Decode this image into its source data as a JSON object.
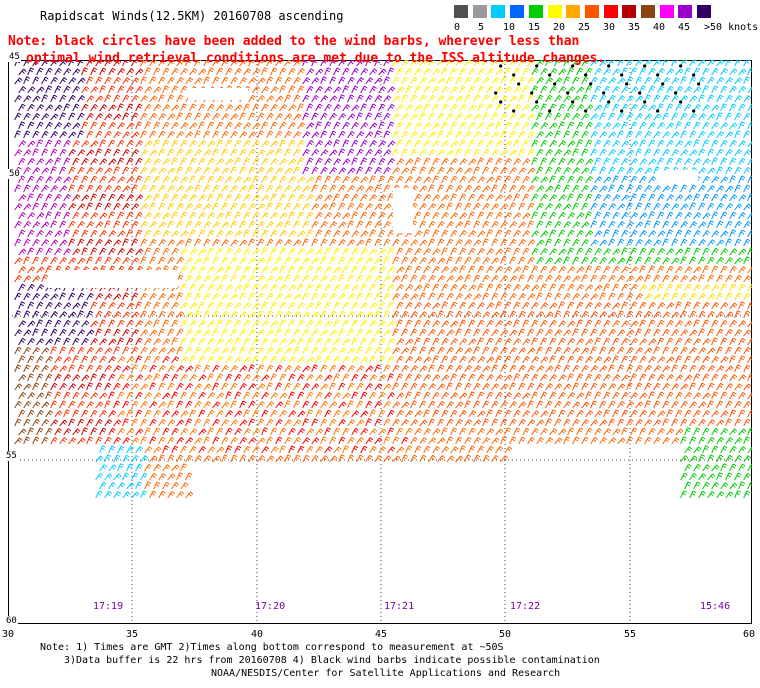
{
  "title": "Rapidscat Winds(12.5KM) 20160708 ascending",
  "note": {
    "line1": "Note: black circles have been added to the wind barbs, wherever less than",
    "line2": "optimal wind retrieval conditions are met due to the ISS altitude changes."
  },
  "legend": {
    "labels": [
      "0",
      "5",
      "10",
      "15",
      "20",
      "25",
      "30",
      "35",
      "40",
      "45",
      ">50 knots"
    ],
    "colors": [
      "#505050",
      "#9a9a9a",
      "#00ccff",
      "#0066ff",
      "#00cc00",
      "#ffff00",
      "#ffaa00",
      "#ff5500",
      "#ff0000",
      "#b40000",
      "#8b4513",
      "#ff00ff",
      "#9900cc",
      "#330066"
    ]
  },
  "lat_labels": [
    "45",
    "50",
    "55",
    "60"
  ],
  "lon_labels": [
    "30",
    "35",
    "40",
    "45",
    "50",
    "55",
    "60"
  ],
  "time_labels": [
    "17:19",
    "17:20",
    "17:21",
    "17:22",
    "15:46"
  ],
  "footer": {
    "line1": "Note: 1) Times are GMT 2)Times along bottom correspond to measurement at ~50S",
    "line2": "3)Data buffer is 22 hrs from 20160708 4) Black wind barbs indicate possible contamination",
    "line3": "NOAA/NESDIS/Center for Satellite Applications and Research"
  }
}
